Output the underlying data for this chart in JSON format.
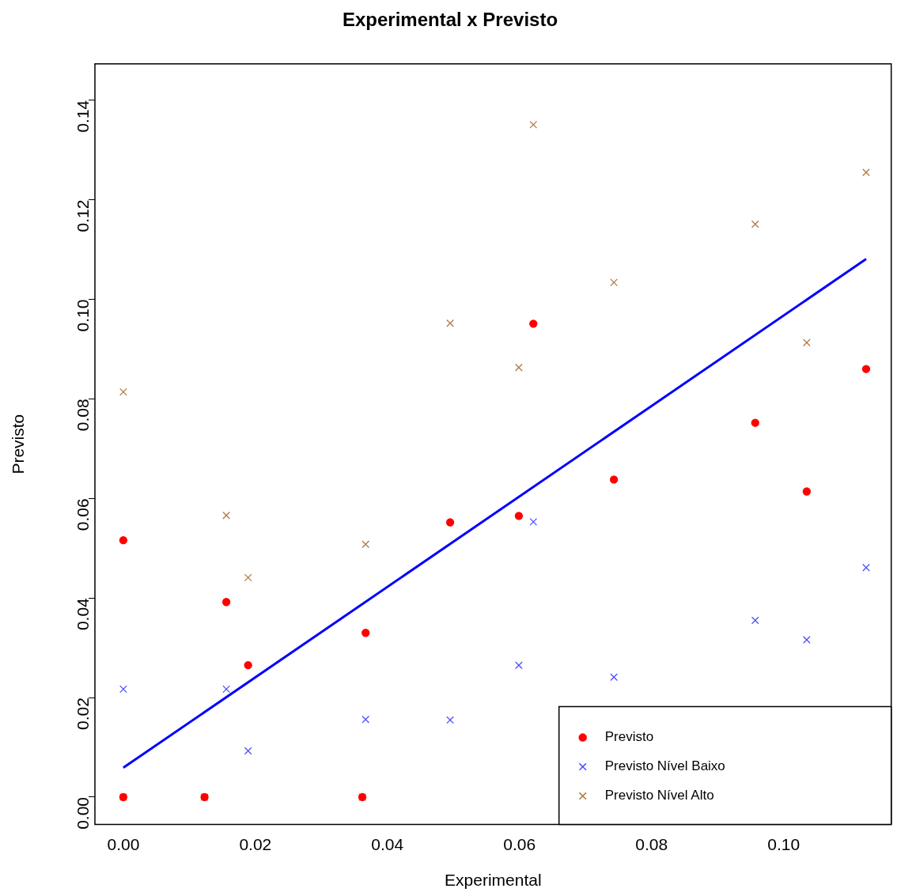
{
  "chart_data": {
    "type": "scatter",
    "title": "Experimental x Previsto",
    "xlabel": "Experimental",
    "ylabel": "Previsto",
    "x": [
      0,
      0,
      0.0123,
      0.0156,
      0.0189,
      0.0362,
      0.0367,
      0.0495,
      0.0599,
      0.0621,
      0.0743,
      0.0957,
      0.1035,
      0.1125
    ],
    "series": [
      {
        "name": "Previsto",
        "color": "#ff0000",
        "marker": "circle",
        "values": [
          0.0516,
          0,
          0,
          0.0392,
          0.0265,
          0,
          0.033,
          0.0552,
          0.0565,
          0.0951,
          0.0638,
          0.0752,
          0.0614,
          0.086
        ]
      },
      {
        "name": "Previsto Nível Baixo",
        "color": "#4f4fff",
        "marker": "cross",
        "values": [
          0.0217,
          null,
          null,
          0.0217,
          0.0093,
          null,
          0.0156,
          0.0155,
          0.0265,
          0.0553,
          0.0241,
          0.0355,
          0.0316,
          0.0461
        ]
      },
      {
        "name": "Previsto Nível Alto",
        "color": "#b07840",
        "marker": "cross",
        "values": [
          0.0814,
          0,
          0,
          0.0566,
          0.0441,
          0,
          0.0508,
          0.0952,
          0.0863,
          0.1351,
          0.1034,
          0.1151,
          0.0913,
          0.1255
        ]
      },
      {
        "type": "line",
        "color": "#0000ff",
        "marker": "none",
        "x": [
          0,
          0.1125
        ],
        "values": [
          0.0059,
          0.1081
        ]
      }
    ],
    "xlim": [
      -0.0043,
      0.1163
    ],
    "ylim": [
      -0.0055,
      0.1473
    ],
    "xticks": [
      {
        "value": 0,
        "label": "0.00"
      },
      {
        "value": 0.02,
        "label": "0.02"
      },
      {
        "value": 0.04,
        "label": "0.04"
      },
      {
        "value": 0.06,
        "label": "0.06"
      },
      {
        "value": 0.08,
        "label": "0.08"
      },
      {
        "value": 0.1,
        "label": "0.10"
      }
    ],
    "yticks": [
      {
        "value": 0,
        "label": "0.00"
      },
      {
        "value": 0.02,
        "label": "0.02"
      },
      {
        "value": 0.04,
        "label": "0.04"
      },
      {
        "value": 0.06,
        "label": "0.06"
      },
      {
        "value": 0.08,
        "label": "0.08"
      },
      {
        "value": 0.1,
        "label": "0.10"
      },
      {
        "value": 0.12,
        "label": "0.12"
      },
      {
        "value": 0.14,
        "label": "0.14"
      }
    ],
    "grid": false,
    "legend": "bottom right"
  }
}
